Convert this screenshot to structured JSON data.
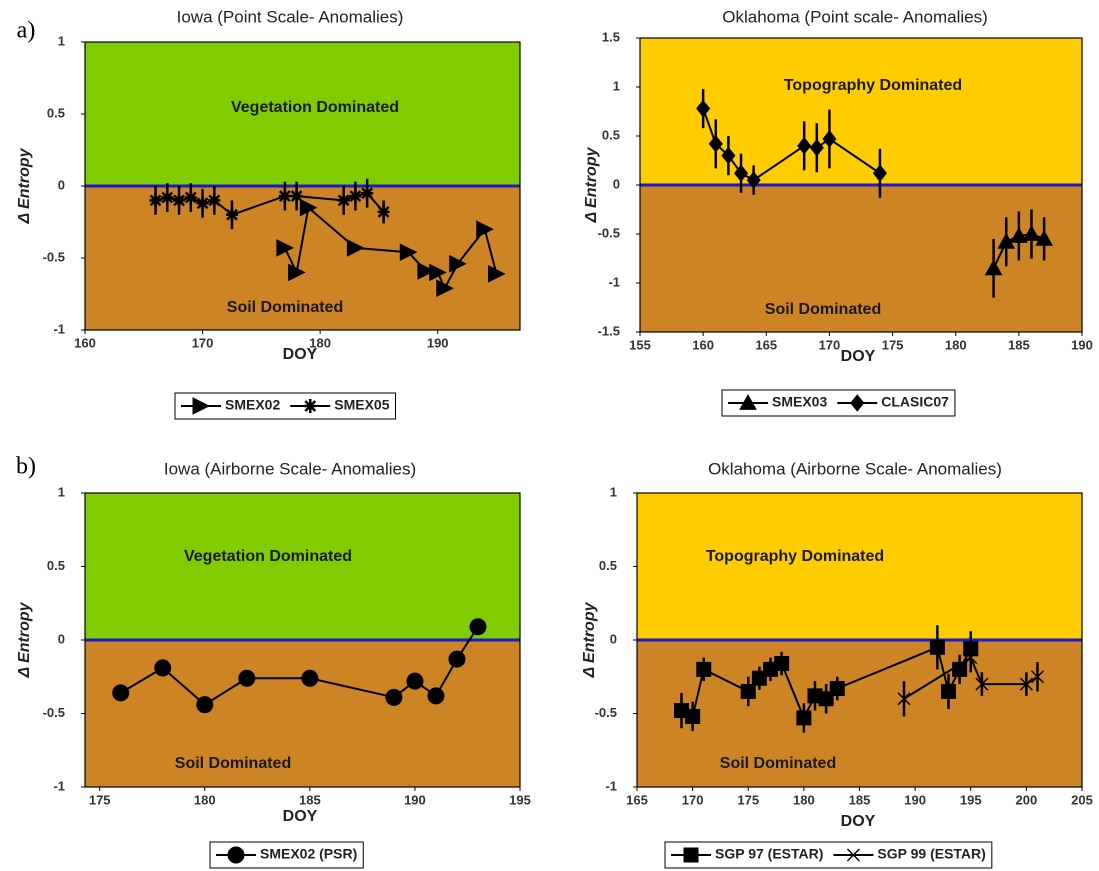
{
  "chart_data": [
    {
      "type": "line",
      "panel_label": "a)",
      "title": "Iowa (Point Scale- Anomalies)",
      "x_label": "DOY",
      "y_label": "Δ Entropy",
      "upper_annotation": "Vegetation Dominated",
      "lower_annotation": "Soil Dominated",
      "upper_color": "#80cc00",
      "lower_color": "#cc8424",
      "zero_line_color": "#1a1acc",
      "xlim": [
        160,
        197
      ],
      "xticks": [
        160,
        170,
        180,
        190
      ],
      "ylim": [
        -1,
        1
      ],
      "yticks": [
        -1,
        -0.5,
        0,
        0.5,
        1
      ],
      "series": [
        {
          "name": "SMEX02",
          "color": "#000000",
          "marker": "triangle-right",
          "x": [
            177,
            178,
            179,
            183,
            187.5,
            189,
            190,
            190.6,
            191.7,
            194,
            195
          ],
          "values": [
            -0.43,
            -0.6,
            -0.15,
            -0.43,
            -0.46,
            -0.59,
            -0.6,
            -0.71,
            -0.54,
            -0.3,
            -0.61
          ]
        },
        {
          "name": "SMEX05",
          "color": "#000000",
          "marker": "asterisk",
          "x": [
            166,
            167,
            168,
            169,
            170,
            171,
            172.5,
            177,
            178,
            182,
            183,
            184,
            185.4
          ],
          "values": [
            -0.1,
            -0.08,
            -0.1,
            -0.08,
            -0.12,
            -0.1,
            -0.2,
            -0.07,
            -0.07,
            -0.1,
            -0.07,
            -0.05,
            -0.18
          ],
          "errors": [
            0.1,
            0.1,
            0.1,
            0.1,
            0.1,
            0.1,
            0.1,
            0.1,
            0.1,
            0.1,
            0.1,
            0.1,
            0.08
          ]
        }
      ]
    },
    {
      "type": "line",
      "title": "Oklahoma (Point scale- Anomalies)",
      "x_label": "DOY",
      "y_label": "Δ Entropy",
      "upper_annotation": "Topography Dominated",
      "lower_annotation": "Soil Dominated",
      "upper_color": "#ffcc00",
      "lower_color": "#cc8424",
      "zero_line_color": "#1a1acc",
      "xlim": [
        155,
        190
      ],
      "xticks": [
        155,
        160,
        165,
        170,
        175,
        180,
        185,
        190
      ],
      "ylim": [
        -1.5,
        1.5
      ],
      "yticks": [
        -1.5,
        -1,
        -0.5,
        0,
        0.5,
        1,
        1.5
      ],
      "series": [
        {
          "name": "SMEX03",
          "color": "#000000",
          "marker": "triangle-up",
          "x": [
            183,
            184,
            185,
            186,
            187
          ],
          "values": [
            -0.85,
            -0.58,
            -0.52,
            -0.5,
            -0.55
          ],
          "errors": [
            0.3,
            0.25,
            0.25,
            0.25,
            0.22
          ]
        },
        {
          "name": "CLASIC07",
          "color": "#000000",
          "marker": "diamond",
          "x": [
            160,
            161,
            162,
            163,
            164,
            168,
            169,
            170,
            174
          ],
          "values": [
            0.78,
            0.42,
            0.3,
            0.12,
            0.05,
            0.4,
            0.38,
            0.47,
            0.12
          ],
          "errors": [
            0.2,
            0.25,
            0.2,
            0.2,
            0.15,
            0.25,
            0.25,
            0.3,
            0.25
          ]
        }
      ]
    },
    {
      "type": "line",
      "panel_label": "b)",
      "title": "Iowa (Airborne Scale- Anomalies)",
      "x_label": "DOY",
      "y_label": "Δ Entropy",
      "upper_annotation": "Vegetation Dominated",
      "lower_annotation": "Soil Dominated",
      "upper_color": "#80cc00",
      "lower_color": "#cc8424",
      "zero_line_color": "#1a1acc",
      "xlim": [
        174.3,
        195
      ],
      "xticks": [
        175,
        180,
        185,
        190,
        195
      ],
      "ylim": [
        -1,
        1
      ],
      "yticks": [
        -1,
        -0.5,
        0,
        0.5,
        1
      ],
      "series": [
        {
          "name": "SMEX02 (PSR)",
          "color": "#000000",
          "marker": "circle",
          "x": [
            176,
            178,
            180,
            182,
            185,
            189,
            190,
            191,
            192,
            193
          ],
          "values": [
            -0.36,
            -0.19,
            -0.44,
            -0.26,
            -0.26,
            -0.39,
            -0.28,
            -0.38,
            -0.13,
            0.09
          ]
        }
      ]
    },
    {
      "type": "line",
      "title": "Oklahoma (Airborne Scale- Anomalies)",
      "x_label": "DOY",
      "y_label": "Δ Entropy",
      "upper_annotation": "Topography Dominated",
      "lower_annotation": "Soil Dominated",
      "upper_color": "#ffcc00",
      "lower_color": "#cc8424",
      "zero_line_color": "#1a1acc",
      "xlim": [
        165,
        205
      ],
      "xticks": [
        165,
        170,
        175,
        180,
        185,
        190,
        195,
        200,
        205
      ],
      "ylim": [
        -1,
        1
      ],
      "yticks": [
        -1,
        -0.5,
        0,
        0.5,
        1
      ],
      "series": [
        {
          "name": "SGP 97 (ESTAR)",
          "color": "#000000",
          "marker": "square",
          "x": [
            169,
            170,
            171,
            175,
            176,
            177,
            178,
            180,
            181,
            182,
            183,
            192,
            193,
            194,
            195
          ],
          "values": [
            -0.48,
            -0.52,
            -0.2,
            -0.35,
            -0.26,
            -0.2,
            -0.16,
            -0.53,
            -0.38,
            -0.4,
            -0.33,
            -0.05,
            -0.35,
            -0.2,
            -0.06
          ],
          "errors": [
            0.12,
            0.1,
            0.08,
            0.1,
            0.08,
            0.08,
            0.08,
            0.1,
            0.1,
            0.1,
            0.08,
            0.15,
            0.12,
            0.1,
            0.12
          ]
        },
        {
          "name": "SGP 99 (ESTAR)",
          "color": "#000000",
          "marker": "cross",
          "x": [
            189,
            195,
            196,
            200,
            201
          ],
          "values": [
            -0.4,
            -0.12,
            -0.3,
            -0.3,
            -0.25
          ],
          "errors": [
            0.12,
            0.1,
            0.08,
            0.08,
            0.1
          ]
        }
      ]
    }
  ]
}
